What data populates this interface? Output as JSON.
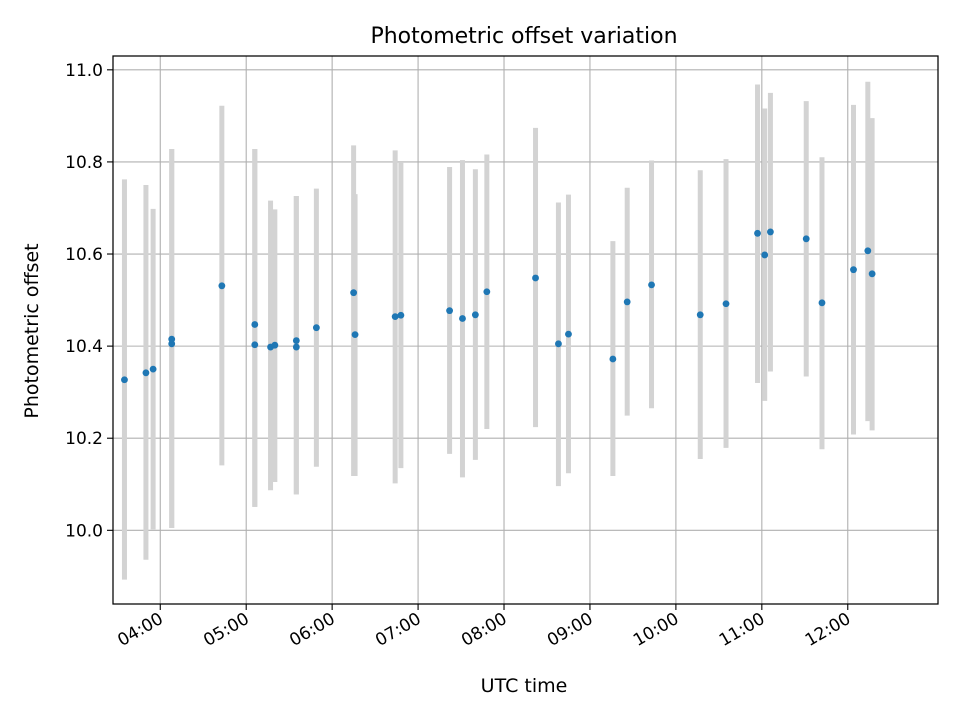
{
  "chart_data": {
    "type": "scatter",
    "title": "Photometric offset variation",
    "xlabel": "UTC time",
    "ylabel": "Photometric offset",
    "x_ticks": [
      "04:00",
      "05:00",
      "06:00",
      "07:00",
      "08:00",
      "09:00",
      "10:00",
      "11:00",
      "12:00"
    ],
    "y_ticks": [
      "10.0",
      "10.2",
      "10.4",
      "10.6",
      "10.8",
      "11.0"
    ],
    "x_tick_values": [
      "04:00",
      "05:00",
      "06:00",
      "07:00",
      "08:00",
      "09:00",
      "10:00",
      "11:00",
      "12:00"
    ],
    "y_tick_values": [
      10.0,
      10.2,
      10.4,
      10.6,
      10.8,
      11.0
    ],
    "xlim": [
      "03:27",
      "13:03"
    ],
    "ylim": [
      9.84,
      11.03
    ],
    "grid": true,
    "colors": {
      "point": "#1f77b4",
      "errorbar": "#d3d3d3",
      "grid": "#b0b0b0"
    },
    "points": [
      {
        "x": "03:35",
        "y": 10.327,
        "ymin": 9.893,
        "ymax": 10.762
      },
      {
        "x": "03:50",
        "y": 10.342,
        "ymin": 9.936,
        "ymax": 10.75
      },
      {
        "x": "03:55",
        "y": 10.35,
        "ymin": 10.002,
        "ymax": 10.698
      },
      {
        "x": "04:08",
        "y": 10.405,
        "ymin": 10.005,
        "ymax": 10.828
      },
      {
        "x": "04:08",
        "y": 10.415,
        "ymin": 10.005,
        "ymax": 10.828
      },
      {
        "x": "04:43",
        "y": 10.531,
        "ymin": 10.141,
        "ymax": 10.922
      },
      {
        "x": "05:06",
        "y": 10.447,
        "ymin": 10.051,
        "ymax": 10.828
      },
      {
        "x": "05:06",
        "y": 10.403,
        "ymin": 10.051,
        "ymax": 10.828
      },
      {
        "x": "05:17",
        "y": 10.398,
        "ymin": 10.087,
        "ymax": 10.716
      },
      {
        "x": "05:20",
        "y": 10.402,
        "ymin": 10.105,
        "ymax": 10.697
      },
      {
        "x": "05:35",
        "y": 10.398,
        "ymin": 10.078,
        "ymax": 10.726
      },
      {
        "x": "05:35",
        "y": 10.412,
        "ymin": 10.078,
        "ymax": 10.726
      },
      {
        "x": "05:49",
        "y": 10.44,
        "ymin": 10.138,
        "ymax": 10.742
      },
      {
        "x": "06:15",
        "y": 10.516,
        "ymin": 10.118,
        "ymax": 10.836
      },
      {
        "x": "06:16",
        "y": 10.425,
        "ymin": 10.118,
        "ymax": 10.73
      },
      {
        "x": "06:44",
        "y": 10.464,
        "ymin": 10.102,
        "ymax": 10.825
      },
      {
        "x": "06:48",
        "y": 10.467,
        "ymin": 10.135,
        "ymax": 10.798
      },
      {
        "x": "07:22",
        "y": 10.477,
        "ymin": 10.166,
        "ymax": 10.789
      },
      {
        "x": "07:31",
        "y": 10.46,
        "ymin": 10.115,
        "ymax": 10.804
      },
      {
        "x": "07:40",
        "y": 10.468,
        "ymin": 10.153,
        "ymax": 10.784
      },
      {
        "x": "07:48",
        "y": 10.518,
        "ymin": 10.22,
        "ymax": 10.816
      },
      {
        "x": "08:22",
        "y": 10.548,
        "ymin": 10.224,
        "ymax": 10.874
      },
      {
        "x": "08:38",
        "y": 10.405,
        "ymin": 10.096,
        "ymax": 10.712
      },
      {
        "x": "08:45",
        "y": 10.426,
        "ymin": 10.124,
        "ymax": 10.729
      },
      {
        "x": "09:16",
        "y": 10.372,
        "ymin": 10.118,
        "ymax": 10.628
      },
      {
        "x": "09:26",
        "y": 10.496,
        "ymin": 10.249,
        "ymax": 10.744
      },
      {
        "x": "09:43",
        "y": 10.533,
        "ymin": 10.265,
        "ymax": 10.803
      },
      {
        "x": "10:17",
        "y": 10.468,
        "ymin": 10.155,
        "ymax": 10.782
      },
      {
        "x": "10:35",
        "y": 10.492,
        "ymin": 10.179,
        "ymax": 10.806
      },
      {
        "x": "10:57",
        "y": 10.645,
        "ymin": 10.32,
        "ymax": 10.968
      },
      {
        "x": "11:02",
        "y": 10.598,
        "ymin": 10.281,
        "ymax": 10.916
      },
      {
        "x": "11:06",
        "y": 10.648,
        "ymin": 10.345,
        "ymax": 10.95
      },
      {
        "x": "11:31",
        "y": 10.633,
        "ymin": 10.334,
        "ymax": 10.932
      },
      {
        "x": "11:42",
        "y": 10.494,
        "ymin": 10.176,
        "ymax": 10.81
      },
      {
        "x": "12:04",
        "y": 10.566,
        "ymin": 10.208,
        "ymax": 10.924
      },
      {
        "x": "12:14",
        "y": 10.607,
        "ymin": 10.237,
        "ymax": 10.974
      },
      {
        "x": "12:17",
        "y": 10.557,
        "ymin": 10.217,
        "ymax": 10.895
      }
    ]
  }
}
